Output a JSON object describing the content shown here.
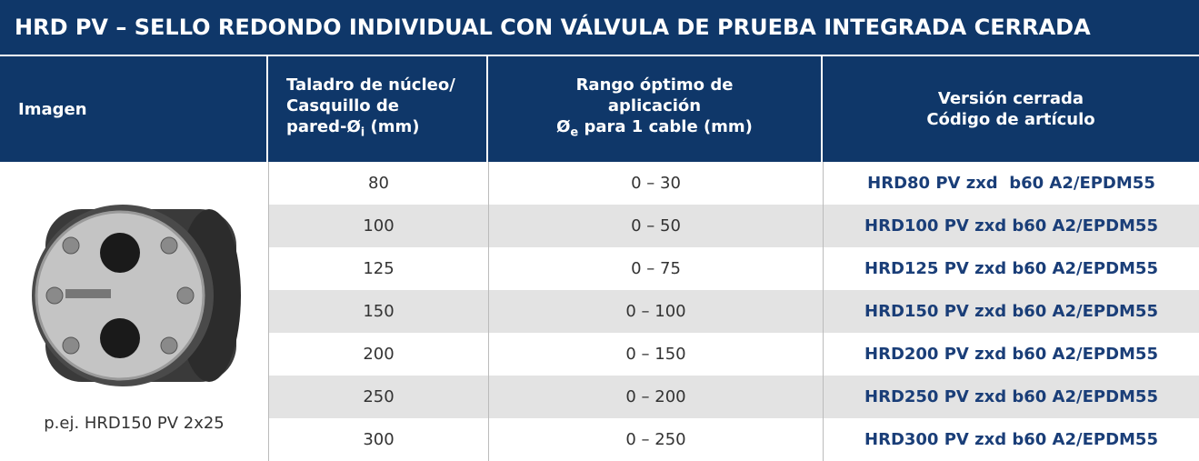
{
  "header": {
    "title": "HRD PV – SELLO REDONDO INDIVIDUAL CON VÁLVULA DE PRUEBA INTEGRADA CERRADA"
  },
  "table": {
    "columns": [
      {
        "lines": [
          "Imagen"
        ]
      },
      {
        "lines": [
          "Taladro de núcleo/",
          "Casquillo de"
        ],
        "last": "pared-Ø",
        "sub": "i",
        "tail": " (mm)"
      },
      {
        "lines": [
          "Rango óptimo de",
          "aplicación"
        ],
        "last": "Ø",
        "sub": "e",
        "tail": " para 1 cable (mm)"
      },
      {
        "lines": [
          "Versión cerrada",
          "Código de artículo"
        ]
      }
    ],
    "image_caption": "p.ej. HRD150 PV 2x25",
    "rows": [
      [
        "80",
        "0 – 30",
        "HRD80 PV zxd  b60 A2/EPDM55"
      ],
      [
        "100",
        "0 – 50",
        "HRD100 PV zxd b60 A2/EPDM55"
      ],
      [
        "125",
        "0 – 75",
        "HRD125 PV zxd b60 A2/EPDM55"
      ],
      [
        "150",
        "0 – 100",
        "HRD150 PV zxd b60 A2/EPDM55"
      ],
      [
        "200",
        "0 – 150",
        "HRD200 PV zxd b60 A2/EPDM55"
      ],
      [
        "250",
        "0 – 200",
        "HRD250 PV zxd b60 A2/EPDM55"
      ],
      [
        "300",
        "0 – 250",
        "HRD300 PV zxd b60 A2/EPDM55"
      ]
    ]
  }
}
